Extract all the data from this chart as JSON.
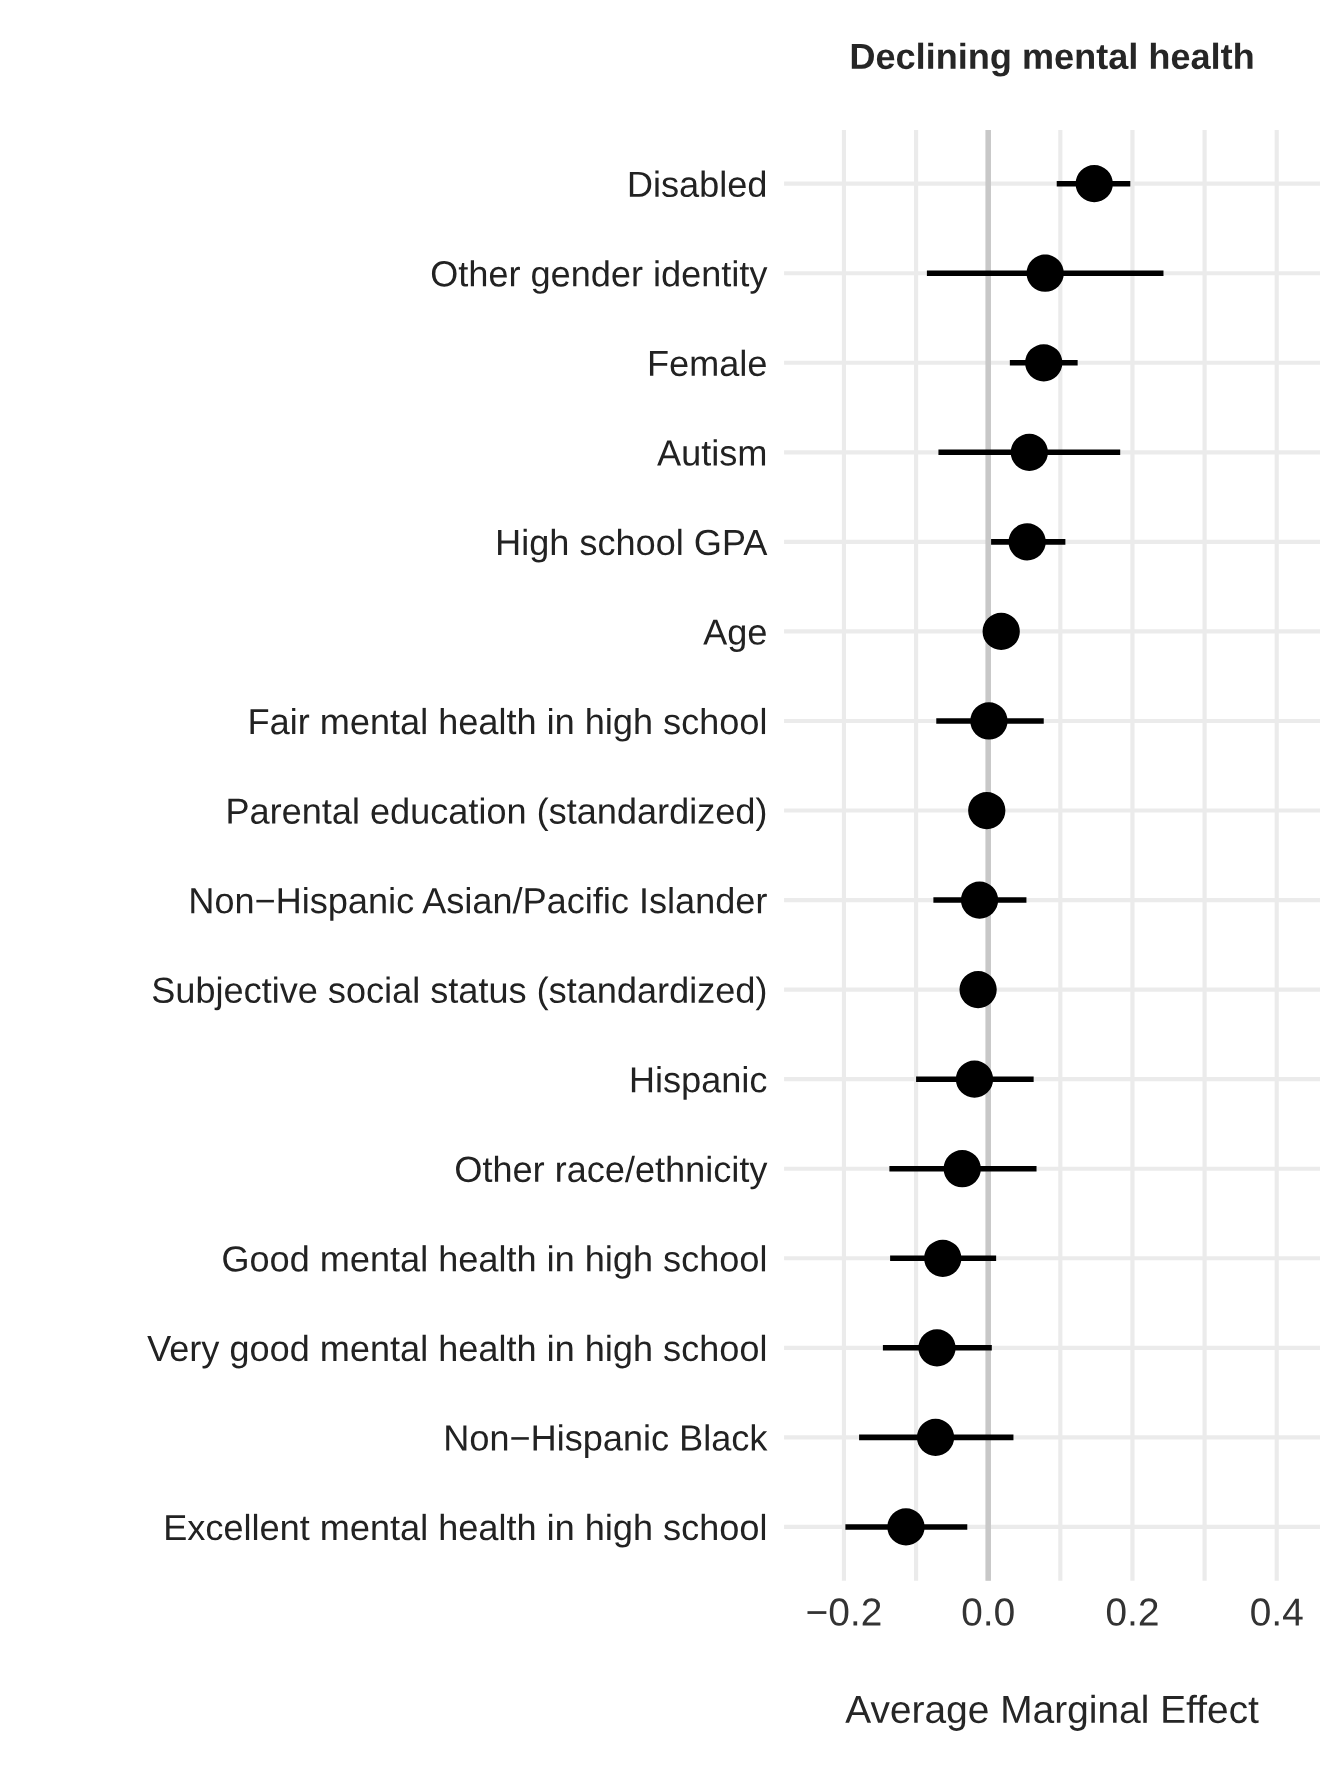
{
  "chart_data": {
    "type": "scatter",
    "orientation": "horizontal",
    "title": "Declining mental health",
    "xlabel": "Average Marginal Effect",
    "categories": [
      "Disabled",
      "Other gender identity",
      "Female",
      "Autism",
      "High school GPA",
      "Age",
      "Fair mental health in high school",
      "Parental education (standardized)",
      "Non−Hispanic Asian/Pacific Islander",
      "Subjective social status (standardized)",
      "Hispanic",
      "Other race/ethnicity",
      "Good mental health in high school",
      "Very good mental health in high school",
      "Non−Hispanic Black",
      "Excellent mental health in high school"
    ],
    "series": [
      {
        "color": "#000000",
        "values": [
          0.147,
          0.079,
          0.077,
          0.057,
          0.054,
          0.018,
          0.001,
          -0.002,
          -0.012,
          -0.014,
          -0.019,
          -0.036,
          -0.063,
          -0.071,
          -0.073,
          -0.114
        ],
        "errors": [
          [
            0.095,
            0.197
          ],
          [
            -0.085,
            0.243
          ],
          [
            0.03,
            0.124
          ],
          [
            -0.069,
            0.183
          ],
          [
            0.004,
            0.107
          ],
          null,
          [
            -0.072,
            0.077
          ],
          null,
          [
            -0.076,
            0.053
          ],
          null,
          [
            -0.1,
            0.063
          ],
          [
            -0.137,
            0.067
          ],
          [
            -0.136,
            0.011
          ],
          [
            -0.146,
            0.005
          ],
          [
            -0.179,
            0.035
          ],
          [
            -0.198,
            -0.029
          ]
        ]
      }
    ],
    "xlim": [
      -0.283,
      0.46
    ],
    "xticks": [
      {
        "value": -0.2,
        "label": "−0.2"
      },
      {
        "value": -0.1,
        "label": null
      },
      {
        "value": 0.0,
        "label": "0.0"
      },
      {
        "value": 0.1,
        "label": null
      },
      {
        "value": 0.2,
        "label": "0.2"
      },
      {
        "value": 0.3,
        "label": null
      },
      {
        "value": 0.4,
        "label": "0.4"
      }
    ],
    "ref_lines": [
      {
        "axis": "x",
        "value": 0,
        "color": "#c8c8c8"
      }
    ],
    "grid": true,
    "marker": "circle"
  }
}
